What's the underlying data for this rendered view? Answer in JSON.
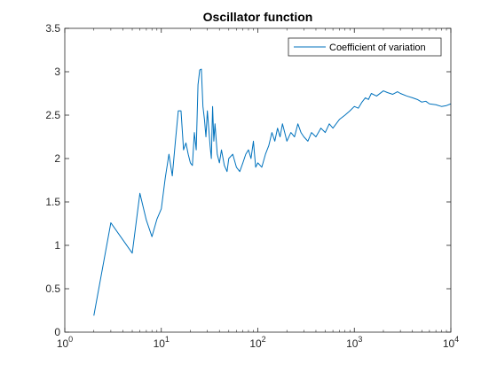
{
  "chart_data": {
    "type": "line",
    "title": "Oscillator function",
    "xlabel": "",
    "ylabel": "",
    "xscale": "log",
    "xlim": [
      1,
      10000
    ],
    "ylim": [
      0,
      3.5
    ],
    "grid": false,
    "legend_position": "top-right",
    "x_tick_labels": [
      {
        "base": "10",
        "exp": "0"
      },
      {
        "base": "10",
        "exp": "1"
      },
      {
        "base": "10",
        "exp": "2"
      },
      {
        "base": "10",
        "exp": "3"
      },
      {
        "base": "10",
        "exp": "4"
      }
    ],
    "y_tick_labels": [
      "0",
      "0.5",
      "1",
      "1.5",
      "2",
      "2.5",
      "3",
      "3.5"
    ],
    "series": [
      {
        "name": "Coefficient of variation",
        "color": "#0072BD",
        "x": [
          2,
          3,
          5,
          6,
          7,
          8,
          9,
          10,
          11,
          12,
          13,
          14,
          15,
          16,
          17,
          18,
          19,
          20,
          21,
          22,
          23,
          24,
          25,
          26,
          27,
          28,
          29,
          30,
          31,
          32,
          33,
          34,
          35,
          36,
          38,
          40,
          42,
          45,
          48,
          50,
          55,
          60,
          65,
          70,
          75,
          80,
          85,
          90,
          95,
          100,
          110,
          120,
          130,
          140,
          150,
          160,
          170,
          180,
          190,
          200,
          220,
          240,
          260,
          280,
          300,
          330,
          360,
          400,
          450,
          500,
          550,
          600,
          700,
          800,
          900,
          1000,
          1100,
          1200,
          1300,
          1400,
          1500,
          1700,
          2000,
          2200,
          2500,
          2800,
          3000,
          3500,
          4000,
          4500,
          5000,
          5500,
          6000,
          7000,
          8000,
          9000,
          10000
        ],
        "y": [
          0.19,
          1.26,
          0.91,
          1.6,
          1.29,
          1.1,
          1.3,
          1.42,
          1.78,
          2.05,
          1.8,
          2.2,
          2.55,
          2.55,
          2.1,
          2.18,
          2.05,
          1.95,
          1.92,
          2.3,
          2.1,
          2.85,
          3.02,
          3.03,
          2.6,
          2.45,
          2.25,
          2.55,
          2.35,
          2.15,
          2.0,
          2.6,
          2.2,
          2.4,
          2.05,
          1.95,
          2.1,
          1.92,
          1.85,
          2.0,
          2.05,
          1.9,
          1.85,
          1.95,
          2.05,
          2.1,
          2.0,
          2.2,
          1.9,
          1.95,
          1.9,
          2.05,
          2.15,
          2.3,
          2.2,
          2.35,
          2.25,
          2.4,
          2.3,
          2.2,
          2.3,
          2.25,
          2.4,
          2.3,
          2.25,
          2.2,
          2.3,
          2.25,
          2.35,
          2.3,
          2.4,
          2.35,
          2.45,
          2.5,
          2.55,
          2.6,
          2.58,
          2.65,
          2.7,
          2.68,
          2.75,
          2.72,
          2.78,
          2.76,
          2.74,
          2.77,
          2.75,
          2.72,
          2.7,
          2.68,
          2.65,
          2.66,
          2.63,
          2.62,
          2.6,
          2.61,
          2.63
        ]
      }
    ]
  }
}
